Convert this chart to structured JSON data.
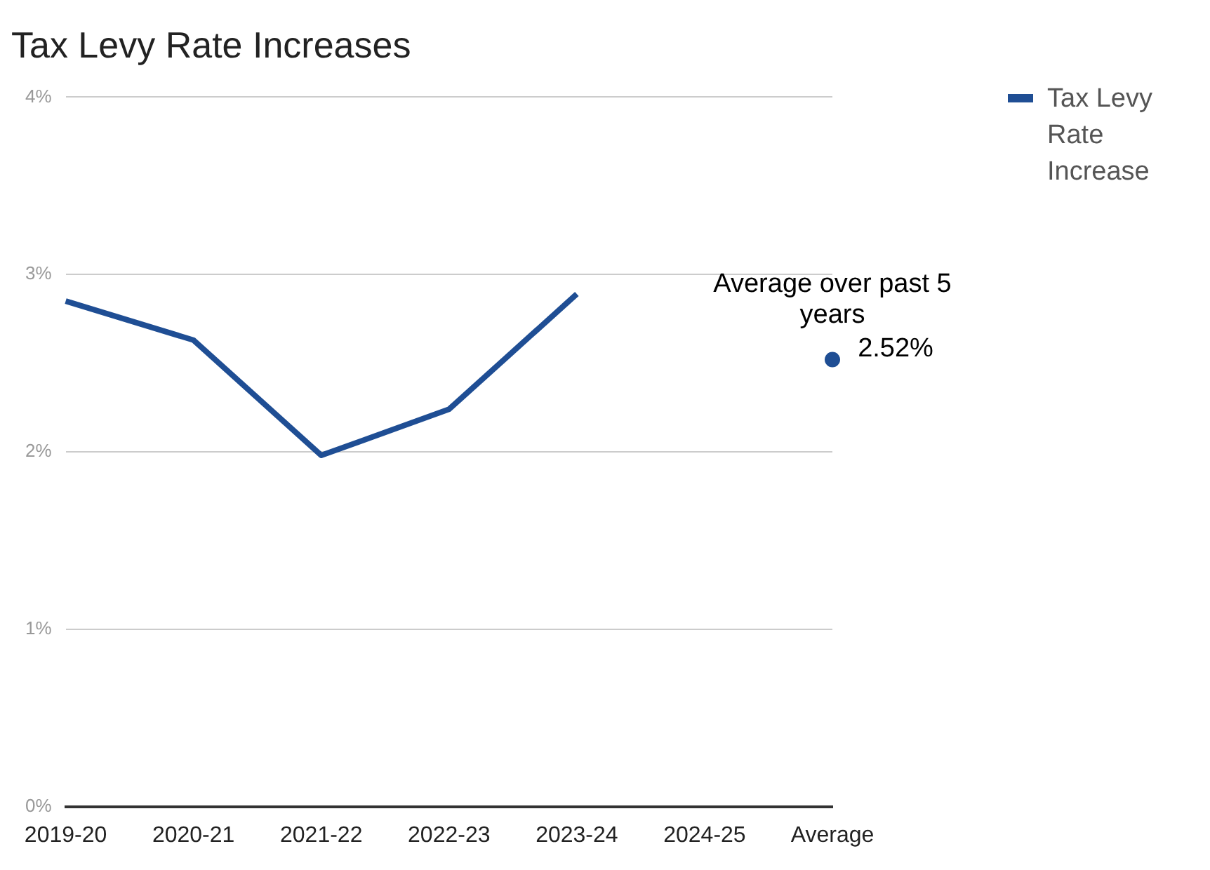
{
  "chart_data": {
    "type": "line",
    "title": "Tax Levy Rate Increases",
    "categories": [
      "2019-20",
      "2020-21",
      "2021-22",
      "2022-23",
      "2023-24",
      "2024-25",
      "Average"
    ],
    "series": [
      {
        "name": "Tax Levy Rate Increase",
        "color": "#1f4e94",
        "values": [
          2.85,
          2.63,
          1.98,
          2.24,
          2.89,
          null,
          null
        ]
      },
      {
        "type": "scatter",
        "color": "#1f4e94",
        "values": [
          null,
          null,
          null,
          null,
          null,
          null,
          2.52
        ],
        "value_labels": [
          null,
          null,
          null,
          null,
          null,
          null,
          "2.52%"
        ]
      }
    ],
    "annotations": [
      {
        "text": "Average over past 5 years",
        "x": "Average",
        "y": 2.52
      }
    ],
    "ylim": [
      0,
      4
    ],
    "yticks": [
      {
        "value": 0,
        "label": "0%"
      },
      {
        "value": 1,
        "label": "1%"
      },
      {
        "value": 2,
        "label": "2%"
      },
      {
        "value": 3,
        "label": "3%"
      },
      {
        "value": 4,
        "label": "4%"
      }
    ],
    "grid": "y",
    "legend": "right"
  }
}
